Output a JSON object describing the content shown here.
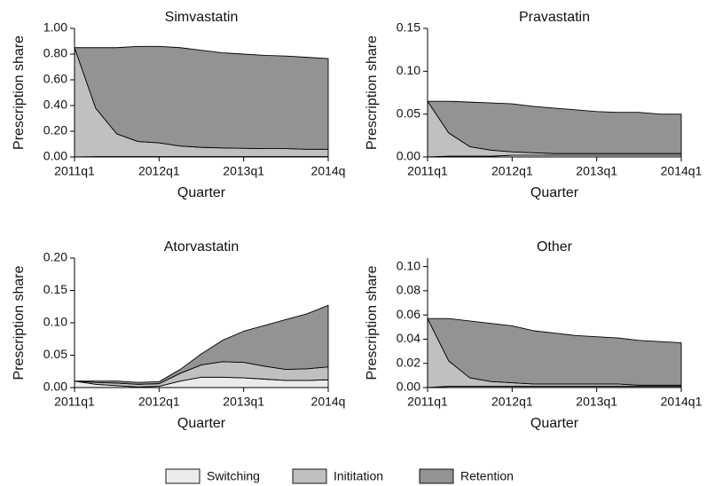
{
  "chart_data": [
    {
      "type": "stacked-area",
      "title": "Simvastatin",
      "xlabel": "Quarter",
      "ylabel": "Prescription share",
      "categories": [
        "2011q1",
        null,
        null,
        null,
        "2012q1",
        null,
        null,
        null,
        "2013q1",
        null,
        null,
        null,
        "2014q"
      ],
      "series": [
        {
          "values": [
            0,
            0.003,
            0.003,
            0.003,
            0.003,
            0.003,
            0.003,
            0.003,
            0.003,
            0.003,
            0.003,
            0.003,
            0.003
          ]
        },
        {
          "values": [
            0.85,
            0.377,
            0.177,
            0.117,
            0.107,
            0.082,
            0.072,
            0.067,
            0.065,
            0.062,
            0.062,
            0.057,
            0.057
          ]
        },
        {
          "values": [
            0,
            0.47,
            0.67,
            0.74,
            0.75,
            0.765,
            0.755,
            0.74,
            0.732,
            0.725,
            0.72,
            0.715,
            0.705
          ]
        }
      ],
      "ylim": [
        0,
        1
      ],
      "yticks": [
        {
          "value": 0,
          "label": "0.00"
        },
        {
          "value": 0.2,
          "label": "0.20"
        },
        {
          "value": 0.4,
          "label": "0.40"
        },
        {
          "value": 0.6,
          "label": "0.60"
        },
        {
          "value": 0.8,
          "label": "0.80"
        },
        {
          "value": 1,
          "label": "1.00"
        }
      ]
    },
    {
      "type": "stacked-area",
      "title": "Pravastatin",
      "xlabel": "Quarter",
      "ylabel": "Prescription share",
      "categories": [
        "2011q1",
        null,
        null,
        null,
        "2012q1",
        null,
        null,
        null,
        "2013q1",
        null,
        null,
        null,
        "2014q1"
      ],
      "series": [
        {
          "values": [
            0,
            0.001,
            0.001,
            0.001,
            0.002,
            0.002,
            0.002,
            0.002,
            0.002,
            0.002,
            0.002,
            0.002,
            0.002
          ]
        },
        {
          "values": [
            0.065,
            0.027,
            0.011,
            0.007,
            0.004,
            0.003,
            0.002,
            0.002,
            0.002,
            0.002,
            0.002,
            0.002,
            0.002
          ]
        },
        {
          "values": [
            0,
            0.037,
            0.052,
            0.055,
            0.056,
            0.054,
            0.053,
            0.051,
            0.049,
            0.048,
            0.048,
            0.046,
            0.046
          ]
        }
      ],
      "ylim": [
        0,
        0.15
      ],
      "yticks": [
        {
          "value": 0,
          "label": "0.00"
        },
        0.05,
        {
          "value": 0.1,
          "label": "0.10"
        },
        0.15
      ]
    },
    {
      "type": "stacked-area",
      "title": "Atorvastatin",
      "xlabel": "Quarter",
      "ylabel": "Prescription share",
      "categories": [
        "2011q1",
        null,
        null,
        null,
        "2012q1",
        null,
        null,
        null,
        "2013q1",
        null,
        null,
        null,
        "2014q"
      ],
      "series": [
        {
          "values": [
            0.01,
            0.005,
            0.003,
            0.001,
            0.002,
            0.01,
            0.016,
            0.016,
            0.015,
            0.013,
            0.011,
            0.011,
            0.012
          ]
        },
        {
          "values": [
            0,
            0.003,
            0.004,
            0.004,
            0.004,
            0.012,
            0.019,
            0.024,
            0.024,
            0.02,
            0.017,
            0.018,
            0.02
          ]
        },
        {
          "values": [
            0,
            0.002,
            0.003,
            0.003,
            0.003,
            0.006,
            0.017,
            0.033,
            0.048,
            0.063,
            0.077,
            0.085,
            0.095
          ]
        }
      ],
      "ylim": [
        0,
        0.2
      ],
      "yticks": [
        {
          "value": 0,
          "label": "0.00"
        },
        0.05,
        {
          "value": 0.1,
          "label": "0.10"
        },
        0.15,
        {
          "value": 0.2,
          "label": "0.20"
        }
      ]
    },
    {
      "type": "stacked-area",
      "title": "Other",
      "xlabel": "Quarter",
      "ylabel": "Prescription share",
      "categories": [
        "2011q1",
        null,
        null,
        null,
        "2012q1",
        null,
        null,
        null,
        "2013q1",
        null,
        null,
        null,
        "2014q1"
      ],
      "series": [
        {
          "values": [
            0,
            0.001,
            0.001,
            0.001,
            0.001,
            0.001,
            0.001,
            0.001,
            0.001,
            0.001,
            0.001,
            0.001,
            0.001
          ]
        },
        {
          "values": [
            0.057,
            0.021,
            0.007,
            0.004,
            0.003,
            0.002,
            0.002,
            0.002,
            0.002,
            0.002,
            0.001,
            0.001,
            0.001
          ]
        },
        {
          "values": [
            0,
            0.035,
            0.047,
            0.048,
            0.047,
            0.044,
            0.042,
            0.04,
            0.039,
            0.038,
            0.037,
            0.036,
            0.035
          ]
        }
      ],
      "ylim": [
        0,
        0.107
      ],
      "yticks": [
        {
          "value": 0,
          "label": "0.00"
        },
        0.02,
        0.04,
        0.06,
        0.08,
        {
          "value": 0.1,
          "label": "0.10"
        }
      ]
    }
  ],
  "legend": [
    {
      "name": "Switching",
      "color": "#ebebeb"
    },
    {
      "name": "Inititation",
      "color": "#c0c0c0"
    },
    {
      "name": "Retention",
      "color": "#939393"
    }
  ]
}
